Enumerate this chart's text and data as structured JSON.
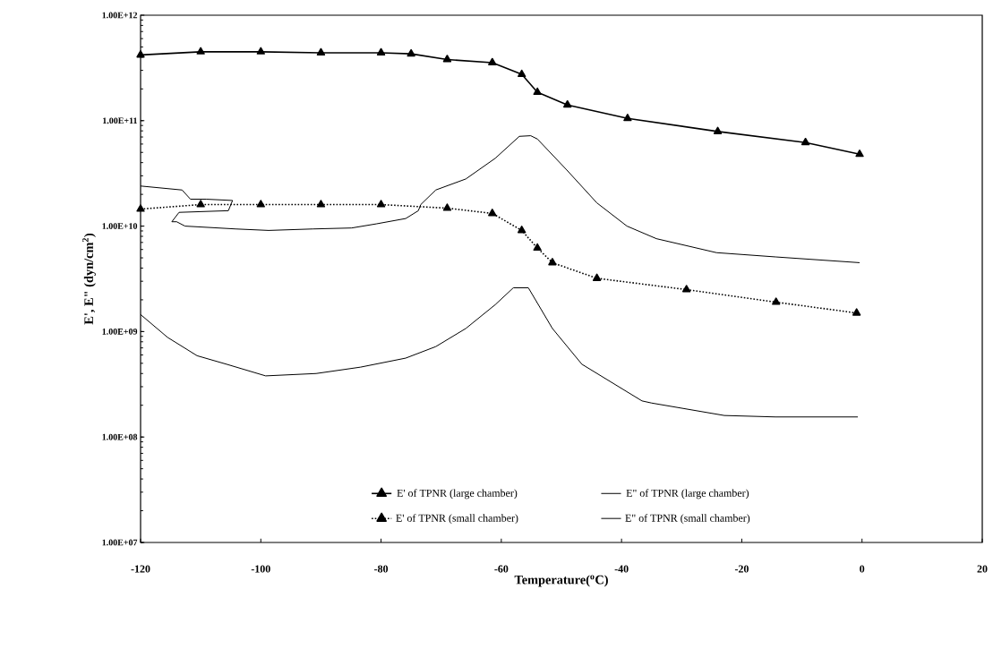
{
  "chart_data": {
    "type": "line",
    "xlabel": "Temperature($^{o}$C)",
    "ylabel": "E', E\" (dyn/cm$^{2}$)",
    "xlim": [
      -120,
      20
    ],
    "xticks": [
      -120,
      -100,
      -80,
      -60,
      -40,
      -20,
      0,
      20
    ],
    "ylim": [
      10000000.0,
      1000000000000.0
    ],
    "log": "y",
    "yticks": [
      {
        "value": 10000000.0,
        "label": "1.00E+07"
      },
      {
        "value": 100000000.0,
        "label": "1.00E+08"
      },
      {
        "value": 1000000000.0,
        "label": "1.00E+09"
      },
      {
        "value": 10000000000.0,
        "label": "1.00E+10"
      },
      {
        "value": 100000000000.0,
        "label": "1.00E+11"
      },
      {
        "value": 1000000000000.0,
        "label": "1.00E+12"
      }
    ],
    "legend": "bottom",
    "series": [
      {
        "name": "E' of TPNR (large chamber)",
        "color": "#000000",
        "marker": "triangle",
        "line_style": "solid",
        "x": [
          -120,
          -110,
          -100,
          -90,
          -80,
          -75,
          -69,
          -61.5,
          -56.6,
          -54,
          -49,
          -39,
          -24,
          -9.4,
          -0.4
        ],
        "values": [
          420000000000.0,
          450000000000.0,
          450000000000.0,
          440000000000.0,
          440000000000.0,
          430000000000.0,
          380000000000.0,
          355000000000.0,
          275000000000.0,
          186000000000.0,
          141000000000.0,
          105000000000.0,
          79000000000.0,
          62000000000.0,
          48000000000.0
        ]
      },
      {
        "name": "E\" of TPNR (large chamber)",
        "color": "#000000",
        "marker": "none",
        "line_style": "solid",
        "x": [
          -120,
          -113.1,
          -111.7,
          -109.1,
          -104.7,
          -105.4,
          -113.6,
          -114.8,
          -114,
          -112.6,
          -104.2,
          -98.7,
          -91.3,
          -84.9,
          -80.8,
          -75.9,
          -73.8,
          -73.4,
          -70.9,
          -65.9,
          -61,
          -57,
          -55.1,
          -54,
          -49.1,
          -44.1,
          -39.1,
          -34.2,
          -24.2,
          -14.3,
          -0.4
        ],
        "values": [
          24000000000.0,
          22000000000.0,
          18000000000.0,
          18000000000.0,
          17500000000.0,
          14000000000.0,
          13500000000.0,
          11000000000.0,
          11000000000.0,
          10000000000.0,
          9400000000.0,
          9100000000.0,
          9400000000.0,
          9600000000.0,
          10500000000.0,
          11800000000.0,
          14000000000.0,
          16000000000.0,
          22000000000.0,
          28000000000.0,
          44000000000.0,
          71000000000.0,
          72000000000.0,
          67000000000.0,
          34000000000.0,
          16600000000.0,
          10000000000.0,
          7600000000.0,
          5600000000.0,
          5100000000.0,
          4500000000.0
        ]
      },
      {
        "name": "E' of TPNR (small chamber)",
        "color": "#000000",
        "marker": "triangle",
        "line_style": "dotted",
        "x": [
          -120,
          -110,
          -100,
          -90,
          -80,
          -69,
          -61.5,
          -56.6,
          -54,
          -51.5,
          -44.1,
          -29.2,
          -14.3,
          -0.9
        ],
        "values": [
          14500000000.0,
          16000000000.0,
          16000000000.0,
          16000000000.0,
          16000000000.0,
          14800000000.0,
          13200000000.0,
          9100000000.0,
          6200000000.0,
          4500000000.0,
          3200000000.0,
          2500000000.0,
          1900000000.0,
          1500000000.0
        ]
      },
      {
        "name": "E\" of TPNR (small chamber)",
        "color": "#000000",
        "marker": "none",
        "line_style": "solid",
        "x": [
          -120,
          -115.5,
          -110.6,
          -105.7,
          -99.2,
          -90.8,
          -83.4,
          -75.9,
          -70.9,
          -65.9,
          -61,
          -58,
          -55.5,
          -51.5,
          -46.6,
          -36.6,
          -35,
          -22.9,
          -14.4,
          -0.7
        ],
        "values": [
          1450000000.0,
          880000000.0,
          590000000.0,
          490000000.0,
          380000000.0,
          400000000.0,
          460000000.0,
          560000000.0,
          720000000.0,
          1070000000.0,
          1800000000.0,
          2600000000.0,
          2600000000.0,
          1070000000.0,
          490000000.0,
          220000000.0,
          210000000.0,
          160000000.0,
          155000000.0,
          155000000.0
        ]
      }
    ]
  }
}
